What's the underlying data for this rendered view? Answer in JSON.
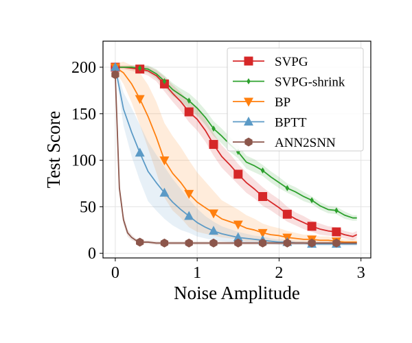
{
  "chart_data": {
    "type": "line",
    "title": "",
    "xlabel": "Noise Amplitude",
    "ylabel": "Test Score",
    "xlim": [
      -0.15,
      3.12
    ],
    "ylim": [
      -5,
      228
    ],
    "xticks": [
      0,
      1,
      2,
      3
    ],
    "yticks": [
      0,
      50,
      100,
      150,
      200
    ],
    "grid": true,
    "legend_position": "top-right",
    "marker_x": [
      0,
      0.3,
      0.6,
      0.9,
      1.2,
      1.5,
      1.8,
      2.1,
      2.4,
      2.7
    ],
    "series": [
      {
        "name": "SVPG",
        "color": "#d62728",
        "marker": "square",
        "x": [
          0,
          0.1,
          0.2,
          0.3,
          0.4,
          0.5,
          0.6,
          0.7,
          0.8,
          0.9,
          1.0,
          1.1,
          1.2,
          1.3,
          1.4,
          1.5,
          1.6,
          1.7,
          1.8,
          1.9,
          2.0,
          2.1,
          2.2,
          2.3,
          2.4,
          2.5,
          2.6,
          2.7,
          2.8,
          2.9,
          2.95
        ],
        "y": [
          200,
          200,
          199,
          198,
          196,
          191,
          182,
          172,
          163,
          152,
          144,
          132,
          117,
          104,
          95,
          85,
          76,
          69,
          61,
          55,
          49,
          42,
          37,
          33,
          29,
          26,
          24,
          23,
          20,
          18,
          20
        ],
        "band": [
          2,
          2,
          3,
          4,
          5,
          6,
          8,
          9,
          10,
          11,
          12,
          12,
          12,
          12,
          12,
          11,
          11,
          10,
          10,
          9,
          9,
          8,
          7,
          7,
          6,
          6,
          5,
          5,
          4,
          4,
          4
        ]
      },
      {
        "name": "SVPG-shrink",
        "color": "#2ca02c",
        "marker": "thin_diamond",
        "x": [
          0,
          0.1,
          0.2,
          0.3,
          0.4,
          0.5,
          0.6,
          0.7,
          0.8,
          0.9,
          1.0,
          1.1,
          1.2,
          1.3,
          1.4,
          1.5,
          1.6,
          1.7,
          1.8,
          1.9,
          2.0,
          2.1,
          2.2,
          2.3,
          2.4,
          2.5,
          2.6,
          2.7,
          2.8,
          2.9,
          2.95
        ],
        "y": [
          200,
          200,
          200,
          199,
          198,
          193,
          185,
          176,
          170,
          164,
          156,
          146,
          134,
          126,
          117,
          109,
          98,
          94,
          89,
          82,
          76,
          70,
          66,
          61,
          57,
          51,
          47,
          46,
          41,
          38,
          38
        ],
        "band": [
          1,
          1,
          2,
          3,
          4,
          5,
          6,
          7,
          7,
          8,
          8,
          8,
          8,
          8,
          8,
          7,
          7,
          7,
          6,
          6,
          6,
          5,
          5,
          5,
          4,
          4,
          4,
          4,
          4,
          3,
          3
        ]
      },
      {
        "name": "BP",
        "color": "#ff7f0e",
        "marker": "triangle_down",
        "x": [
          0,
          0.1,
          0.2,
          0.3,
          0.4,
          0.5,
          0.6,
          0.7,
          0.8,
          0.9,
          1.0,
          1.1,
          1.2,
          1.3,
          1.4,
          1.5,
          1.6,
          1.7,
          1.8,
          1.9,
          2.0,
          2.1,
          2.2,
          2.3,
          2.4,
          2.5,
          2.6,
          2.7,
          2.8,
          2.9,
          2.95
        ],
        "y": [
          200,
          194,
          182,
          166,
          147,
          125,
          100,
          86,
          76,
          64,
          55,
          49,
          43,
          37,
          34,
          31,
          27,
          25,
          22,
          20,
          19,
          17,
          16,
          15,
          15,
          14,
          14,
          13,
          12,
          12,
          12
        ],
        "band": [
          4,
          12,
          20,
          28,
          34,
          38,
          40,
          40,
          38,
          36,
          32,
          28,
          24,
          20,
          18,
          16,
          14,
          12,
          10,
          9,
          8,
          7,
          6,
          5,
          5,
          4,
          4,
          3,
          3,
          3,
          3
        ]
      },
      {
        "name": "BPTT",
        "color": "#5b9ac6",
        "marker": "triangle_up",
        "x": [
          0,
          0.1,
          0.2,
          0.3,
          0.4,
          0.5,
          0.6,
          0.7,
          0.8,
          0.9,
          1.0,
          1.1,
          1.2,
          1.3,
          1.4,
          1.5,
          1.6,
          1.7,
          1.8,
          1.9,
          2.0,
          2.1,
          2.2,
          2.3,
          2.4,
          2.5,
          2.6,
          2.7,
          2.8,
          2.9,
          2.95
        ],
        "y": [
          200,
          155,
          130,
          108,
          88,
          76,
          65,
          55,
          47,
          40,
          33,
          28,
          24,
          21,
          19,
          17,
          16,
          15,
          14,
          13,
          12,
          12,
          11,
          11,
          10,
          10,
          10,
          10,
          10,
          10,
          10
        ],
        "band": [
          3,
          18,
          26,
          30,
          32,
          30,
          28,
          25,
          22,
          18,
          15,
          12,
          10,
          8,
          7,
          6,
          5,
          4,
          4,
          3,
          3,
          3,
          2,
          2,
          2,
          2,
          2,
          2,
          2,
          2,
          2
        ]
      },
      {
        "name": "ANN2SNN",
        "color": "#8c564b",
        "marker": "hexagon",
        "x": [
          0,
          0.05,
          0.1,
          0.15,
          0.2,
          0.25,
          0.3,
          0.4,
          0.5,
          0.6,
          0.7,
          0.8,
          0.9,
          1.0,
          1.2,
          1.4,
          1.5,
          1.6,
          1.8,
          2.0,
          2.1,
          2.2,
          2.4,
          2.6,
          2.7,
          2.8,
          2.95
        ],
        "y": [
          192,
          70,
          36,
          22,
          17,
          14,
          12,
          12,
          11,
          11,
          11,
          11,
          11,
          11,
          11,
          11,
          11,
          11,
          11,
          11,
          11,
          11,
          11,
          11,
          11,
          11,
          11
        ],
        "band": [
          3,
          6,
          5,
          4,
          3,
          2,
          2,
          2,
          2,
          2,
          2,
          2,
          2,
          2,
          2,
          2,
          2,
          2,
          2,
          2,
          2,
          2,
          2,
          2,
          2,
          2,
          2
        ]
      }
    ]
  }
}
